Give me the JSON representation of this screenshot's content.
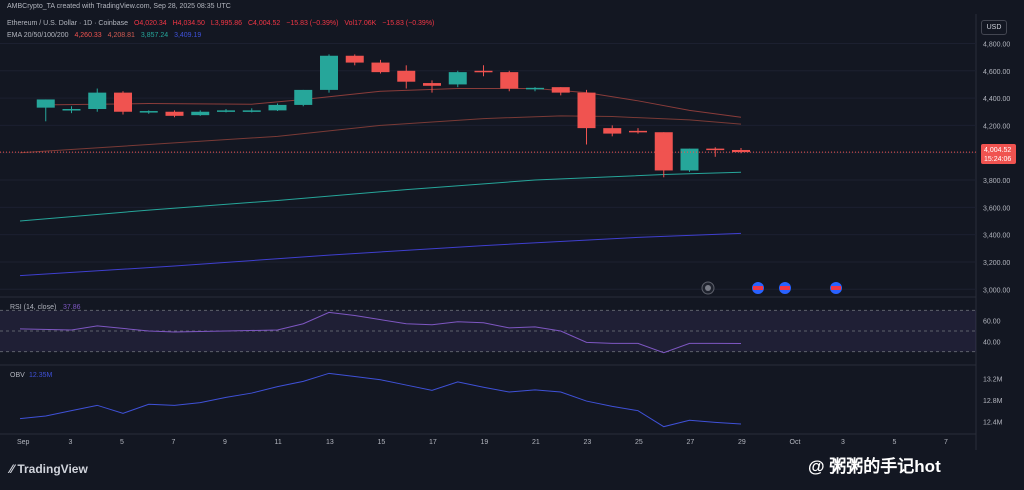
{
  "header": {
    "creator": "AMBCrypto_TA created with TradingView.com, Sep 28, 2025 08:35 UTC",
    "symbol": "Ethereum / U.S. Dollar · 1D · Coinbase",
    "open": "O4,020.34",
    "high": "H4,034.50",
    "low": "L3,995.86",
    "close": "C4,004.52",
    "change": "−15.83 (−0.39%)",
    "volume": "Vol17.06K",
    "vol_change": "−15.83 (−0.39%)"
  },
  "ema_legend": {
    "label": "EMA 20/50/100/200",
    "ema20": "4,260.33",
    "ema50": "4,208.81",
    "ema100": "3,857.24",
    "ema200": "3,409.19"
  },
  "currency": "USD",
  "price_tag": {
    "value": "4,004.52",
    "timer": "15:24:06"
  },
  "rsi": {
    "label": "RSI (14, close)",
    "value": "37.86",
    "ticks": [
      "60.00",
      "40.00"
    ]
  },
  "obv": {
    "label": "OBV",
    "value": "12.35M",
    "ticks": [
      "13.2M",
      "12.8M",
      "12.4M"
    ]
  },
  "colors": {
    "up": "#26a69a",
    "down": "#f05350",
    "ema20": "#8a3c3a",
    "ema50": "#7a3a36",
    "ema100": "#26a69a",
    "ema200": "#3f3fcf",
    "rsi": "#7e57c2",
    "obv": "#3f51d8"
  },
  "chart_data": {
    "type": "candlestick",
    "x_ticks": [
      "Sep",
      "3",
      "5",
      "7",
      "9",
      "11",
      "13",
      "15",
      "17",
      "19",
      "21",
      "23",
      "25",
      "27",
      "29",
      "Oct",
      "3",
      "5",
      "7"
    ],
    "y_ticks": [
      4800,
      4600,
      4400,
      4200,
      4000,
      3800,
      3600,
      3400,
      3200,
      3000
    ],
    "ylim": [
      2980,
      4840
    ],
    "candles": [
      {
        "x": 1,
        "o": 4330,
        "h": 4390,
        "l": 4230,
        "c": 4390
      },
      {
        "x": 2,
        "o": 4310,
        "h": 4340,
        "l": 4290,
        "c": 4320
      },
      {
        "x": 3,
        "o": 4320,
        "h": 4470,
        "l": 4300,
        "c": 4440
      },
      {
        "x": 4,
        "o": 4440,
        "h": 4450,
        "l": 4280,
        "c": 4300
      },
      {
        "x": 5,
        "o": 4300,
        "h": 4310,
        "l": 4285,
        "c": 4305
      },
      {
        "x": 6,
        "o": 4300,
        "h": 4310,
        "l": 4260,
        "c": 4270
      },
      {
        "x": 7,
        "o": 4275,
        "h": 4310,
        "l": 4270,
        "c": 4300
      },
      {
        "x": 8,
        "o": 4300,
        "h": 4320,
        "l": 4295,
        "c": 4310
      },
      {
        "x": 9,
        "o": 4305,
        "h": 4325,
        "l": 4295,
        "c": 4310
      },
      {
        "x": 10,
        "o": 4310,
        "h": 4360,
        "l": 4305,
        "c": 4350
      },
      {
        "x": 11,
        "o": 4350,
        "h": 4460,
        "l": 4340,
        "c": 4460
      },
      {
        "x": 12,
        "o": 4460,
        "h": 4720,
        "l": 4440,
        "c": 4710
      },
      {
        "x": 13,
        "o": 4710,
        "h": 4720,
        "l": 4640,
        "c": 4660
      },
      {
        "x": 14,
        "o": 4660,
        "h": 4680,
        "l": 4580,
        "c": 4590
      },
      {
        "x": 15,
        "o": 4600,
        "h": 4640,
        "l": 4470,
        "c": 4520
      },
      {
        "x": 16,
        "o": 4510,
        "h": 4530,
        "l": 4440,
        "c": 4490
      },
      {
        "x": 17,
        "o": 4500,
        "h": 4600,
        "l": 4480,
        "c": 4590
      },
      {
        "x": 18,
        "o": 4600,
        "h": 4640,
        "l": 4560,
        "c": 4590
      },
      {
        "x": 19,
        "o": 4590,
        "h": 4600,
        "l": 4450,
        "c": 4470
      },
      {
        "x": 20,
        "o": 4470,
        "h": 4480,
        "l": 4450,
        "c": 4475
      },
      {
        "x": 21,
        "o": 4480,
        "h": 4480,
        "l": 4420,
        "c": 4440
      },
      {
        "x": 22,
        "o": 4440,
        "h": 4460,
        "l": 4060,
        "c": 4180
      },
      {
        "x": 23,
        "o": 4180,
        "h": 4200,
        "l": 4120,
        "c": 4140
      },
      {
        "x": 24,
        "o": 4160,
        "h": 4180,
        "l": 4140,
        "c": 4150
      },
      {
        "x": 25,
        "o": 4150,
        "h": 4150,
        "l": 3820,
        "c": 3870
      },
      {
        "x": 26,
        "o": 3870,
        "h": 4030,
        "l": 3860,
        "c": 4030
      },
      {
        "x": 27,
        "o": 4030,
        "h": 4040,
        "l": 3970,
        "c": 4020
      },
      {
        "x": 28,
        "o": 4020,
        "h": 4034.5,
        "l": 3995.86,
        "c": 4004.52
      }
    ],
    "ema20": {
      "x": [
        1,
        5,
        9,
        11,
        14,
        17,
        20,
        22,
        24,
        26,
        28
      ],
      "y": [
        4350,
        4360,
        4355,
        4390,
        4450,
        4470,
        4470,
        4440,
        4380,
        4310,
        4260
      ]
    },
    "ema50": {
      "x": [
        0,
        5,
        10,
        14,
        18,
        21,
        23,
        26,
        28
      ],
      "y": [
        4000,
        4060,
        4120,
        4200,
        4250,
        4270,
        4265,
        4240,
        4209
      ]
    },
    "ema100": {
      "x": [
        0,
        5,
        10,
        15,
        20,
        25,
        28
      ],
      "y": [
        3500,
        3580,
        3650,
        3730,
        3800,
        3840,
        3857
      ]
    },
    "ema200": {
      "x": [
        0,
        6,
        12,
        18,
        24,
        28
      ],
      "y": [
        3100,
        3170,
        3250,
        3320,
        3380,
        3409
      ]
    },
    "rsi_values": {
      "x": [
        0,
        2,
        3,
        5,
        6,
        8,
        10,
        11,
        12,
        13,
        14,
        15,
        16,
        17,
        18,
        19,
        20,
        21,
        22,
        23,
        24,
        25,
        26,
        27,
        28
      ],
      "y": [
        52,
        51,
        55,
        50,
        49,
        50,
        51,
        57,
        68,
        65,
        61,
        57,
        56,
        59,
        58,
        53,
        54,
        50,
        39,
        38,
        38,
        29,
        38,
        38,
        37.86
      ]
    },
    "rsi_ylim": [
      20,
      80
    ],
    "obv_values": {
      "x": [
        0,
        1,
        2,
        3,
        4,
        5,
        6,
        7,
        8,
        9,
        10,
        11,
        12,
        13,
        14,
        15,
        16,
        17,
        18,
        19,
        20,
        21,
        22,
        23,
        24,
        25,
        26,
        27,
        28
      ],
      "y": [
        12.45,
        12.5,
        12.6,
        12.7,
        12.55,
        12.72,
        12.7,
        12.75,
        12.85,
        12.93,
        13.05,
        13.15,
        13.3,
        13.24,
        13.18,
        13.08,
        12.98,
        13.14,
        13.04,
        12.95,
        12.99,
        12.95,
        12.78,
        12.68,
        12.6,
        12.3,
        12.42,
        12.38,
        12.35
      ]
    },
    "obv_ylim": [
      12.2,
      13.4
    ]
  },
  "footer": {
    "brand": "TradingView"
  },
  "watermark": "@ 粥粥的手记hot"
}
